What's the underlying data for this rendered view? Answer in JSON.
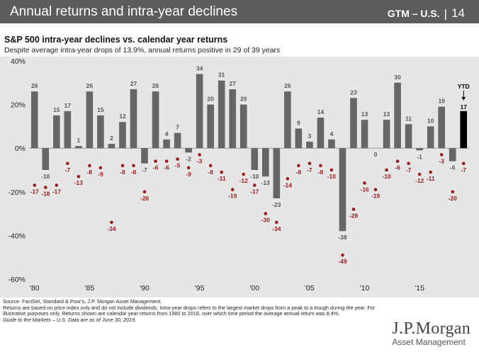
{
  "header": {
    "title": "Annual returns and intra-year declines",
    "badge": "GTM – U.S.",
    "page": "14",
    "background_color": "#5c5c5c"
  },
  "chart_data": {
    "type": "bar",
    "title": "S&P 500 intra-year declines vs. calendar year returns",
    "subtitle": "Despite average intra-year drops of 13.9%, annual returns positive in 29 of 39 years",
    "ylim": [
      -60,
      40
    ],
    "yticks": [
      "40%",
      "20%",
      "0%",
      "-20%",
      "-40%",
      "-60%"
    ],
    "ytick_values": [
      40,
      20,
      0,
      -20,
      -40,
      -60
    ],
    "xtick_labels": [
      {
        "year": 1980,
        "label": "'80"
      },
      {
        "year": 1985,
        "label": "'85"
      },
      {
        "year": 1990,
        "label": "'90"
      },
      {
        "year": 1995,
        "label": "'95"
      },
      {
        "year": 2000,
        "label": "'00"
      },
      {
        "year": 2005,
        "label": "'05"
      },
      {
        "year": 2010,
        "label": "'10"
      },
      {
        "year": 2015,
        "label": "'15"
      }
    ],
    "years": [
      1980,
      1981,
      1982,
      1983,
      1984,
      1985,
      1986,
      1987,
      1988,
      1989,
      1990,
      1991,
      1992,
      1993,
      1994,
      1995,
      1996,
      1997,
      1998,
      1999,
      2000,
      2001,
      2002,
      2003,
      2004,
      2005,
      2006,
      2007,
      2008,
      2009,
      2010,
      2011,
      2012,
      2013,
      2014,
      2015,
      2016,
      2017,
      2018,
      2019
    ],
    "series": [
      {
        "kind": "bar",
        "values": [
          26,
          -10,
          15,
          17,
          1,
          26,
          15,
          2,
          12,
          27,
          -7,
          26,
          4,
          7,
          -2,
          34,
          20,
          31,
          27,
          20,
          -10,
          -13,
          -23,
          26,
          9,
          3,
          14,
          4,
          -38,
          23,
          13,
          0,
          13,
          30,
          11,
          -1,
          10,
          19,
          -6,
          17
        ],
        "color": "#666666",
        "highlight_color": "#000000"
      },
      {
        "kind": "dot",
        "values": [
          -17,
          -18,
          -17,
          -7,
          -13,
          -8,
          -9,
          -34,
          -8,
          -8,
          -20,
          -6,
          -6,
          -5,
          -9,
          -3,
          -8,
          -11,
          -19,
          -12,
          -17,
          -30,
          -34,
          -14,
          -8,
          -7,
          -8,
          -10,
          -49,
          -28,
          -16,
          -19,
          -10,
          -6,
          -7,
          -12,
          -11,
          -3,
          -20,
          -7
        ],
        "color": "#9b1b1b"
      }
    ],
    "ytd_label": "YTD",
    "grid": false
  },
  "footnotes": {
    "line1": "Source: FactSet, Standard & Poor's, J.P. Morgan Asset Management.",
    "line2": "Returns are based on price index only and do not include dividends. Intra-year drops refers to the largest market drops from a peak to a trough during the year. For illustrative purposes only. Returns shown are calendar year returns from 1980 to 2018, over which time period the average annual return was 8.4%.",
    "line3": "Guide to the Markets – U.S. Data are as of June 30, 2019."
  },
  "logo": {
    "name": "J.P.Morgan",
    "sub": "Asset Management"
  }
}
